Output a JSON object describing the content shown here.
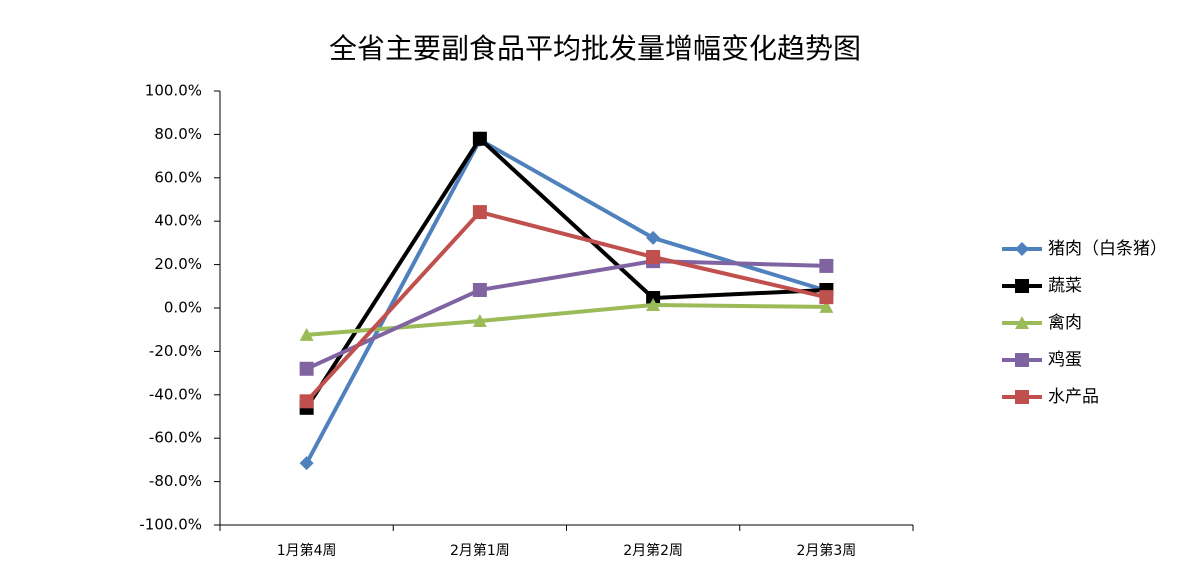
{
  "chart_data": {
    "type": "line",
    "title": "全省主要副食品平均批发量增幅变化趋势图",
    "categories": [
      "1月第4周",
      "2月第1周",
      "2月第2周",
      "2月第3周"
    ],
    "series": [
      {
        "name": "猪肉（白条猪）",
        "color": "#4f81bd",
        "marker": "diamond",
        "values": [
          -71.5,
          77.5,
          32.3,
          8
        ]
      },
      {
        "name": "蔬菜",
        "color": "#000000",
        "marker": "square",
        "values": [
          -46,
          78,
          4.6,
          8.3
        ]
      },
      {
        "name": "禽肉",
        "color": "#9bbb59",
        "marker": "triangle",
        "values": [
          -12.4,
          -6,
          1.4,
          0.5
        ]
      },
      {
        "name": "鸡蛋",
        "color": "#8064a2",
        "marker": "square",
        "values": [
          -28,
          8.3,
          21.6,
          19.4
        ]
      },
      {
        "name": "水产品",
        "color": "#c0504d",
        "marker": "square",
        "values": [
          -43,
          44.2,
          23.5,
          5
        ]
      }
    ],
    "ylim": [
      -100,
      100
    ],
    "yticks": [
      {
        "value": -100,
        "label": "-100.0%"
      },
      {
        "value": -80,
        "label": "-80.0%"
      },
      {
        "value": -60,
        "label": "-60.0%"
      },
      {
        "value": -40,
        "label": "-40.0%"
      },
      {
        "value": -20,
        "label": "-20.0%"
      },
      {
        "value": 0,
        "label": "0.0%"
      },
      {
        "value": 20,
        "label": "20.0%"
      },
      {
        "value": 40,
        "label": "40.0%"
      },
      {
        "value": 60,
        "label": "60.0%"
      },
      {
        "value": 80,
        "label": "80.0%"
      },
      {
        "value": 100,
        "label": "100.0%"
      }
    ],
    "grid": false,
    "legend": "right"
  }
}
